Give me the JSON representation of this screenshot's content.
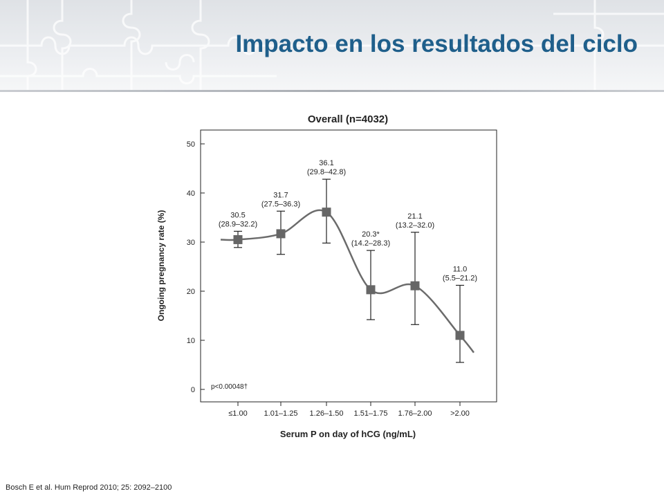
{
  "slide": {
    "title": "Impacto en los resultados del ciclo",
    "citation": "Bosch E et al. Hum Reprod 2010; 25: 2092–2100"
  },
  "colors": {
    "title": "#1f5f8b",
    "series": "#6b6b6b",
    "marker": "#666666",
    "axis": "#222222"
  },
  "chart_data": {
    "type": "line",
    "title": "Overall (n=4032)",
    "xlabel": "Serum P on day of hCG (ng/mL)",
    "ylabel": "Ongoing pregnancy rate (%)",
    "ylim": [
      0,
      50
    ],
    "yticks": [
      0,
      10,
      20,
      30,
      40,
      50
    ],
    "categories": [
      "≤1.00",
      "1.01–1.25",
      "1.26–1.50",
      "1.51–1.75",
      "1.76–2.00",
      ">2.00"
    ],
    "series": [
      {
        "values": [
          30.5,
          31.7,
          36.1,
          20.3,
          21.1,
          11.0
        ],
        "ci_low": [
          28.9,
          27.5,
          29.8,
          14.2,
          13.2,
          5.5
        ],
        "ci_high": [
          32.2,
          36.3,
          42.8,
          28.3,
          32.0,
          21.2
        ]
      }
    ],
    "point_labels": [
      "30.5",
      "31.7",
      "36.1",
      "20.3*",
      "21.1",
      "11.0"
    ],
    "ci_labels": [
      "(28.9–32.2)",
      "(27.5–36.3)",
      "(29.8–42.8)",
      "(14.2–28.3)",
      "(13.2–32.0)",
      "(5.5–21.2)"
    ],
    "annotation": "p<0.00048†",
    "grid": false
  }
}
